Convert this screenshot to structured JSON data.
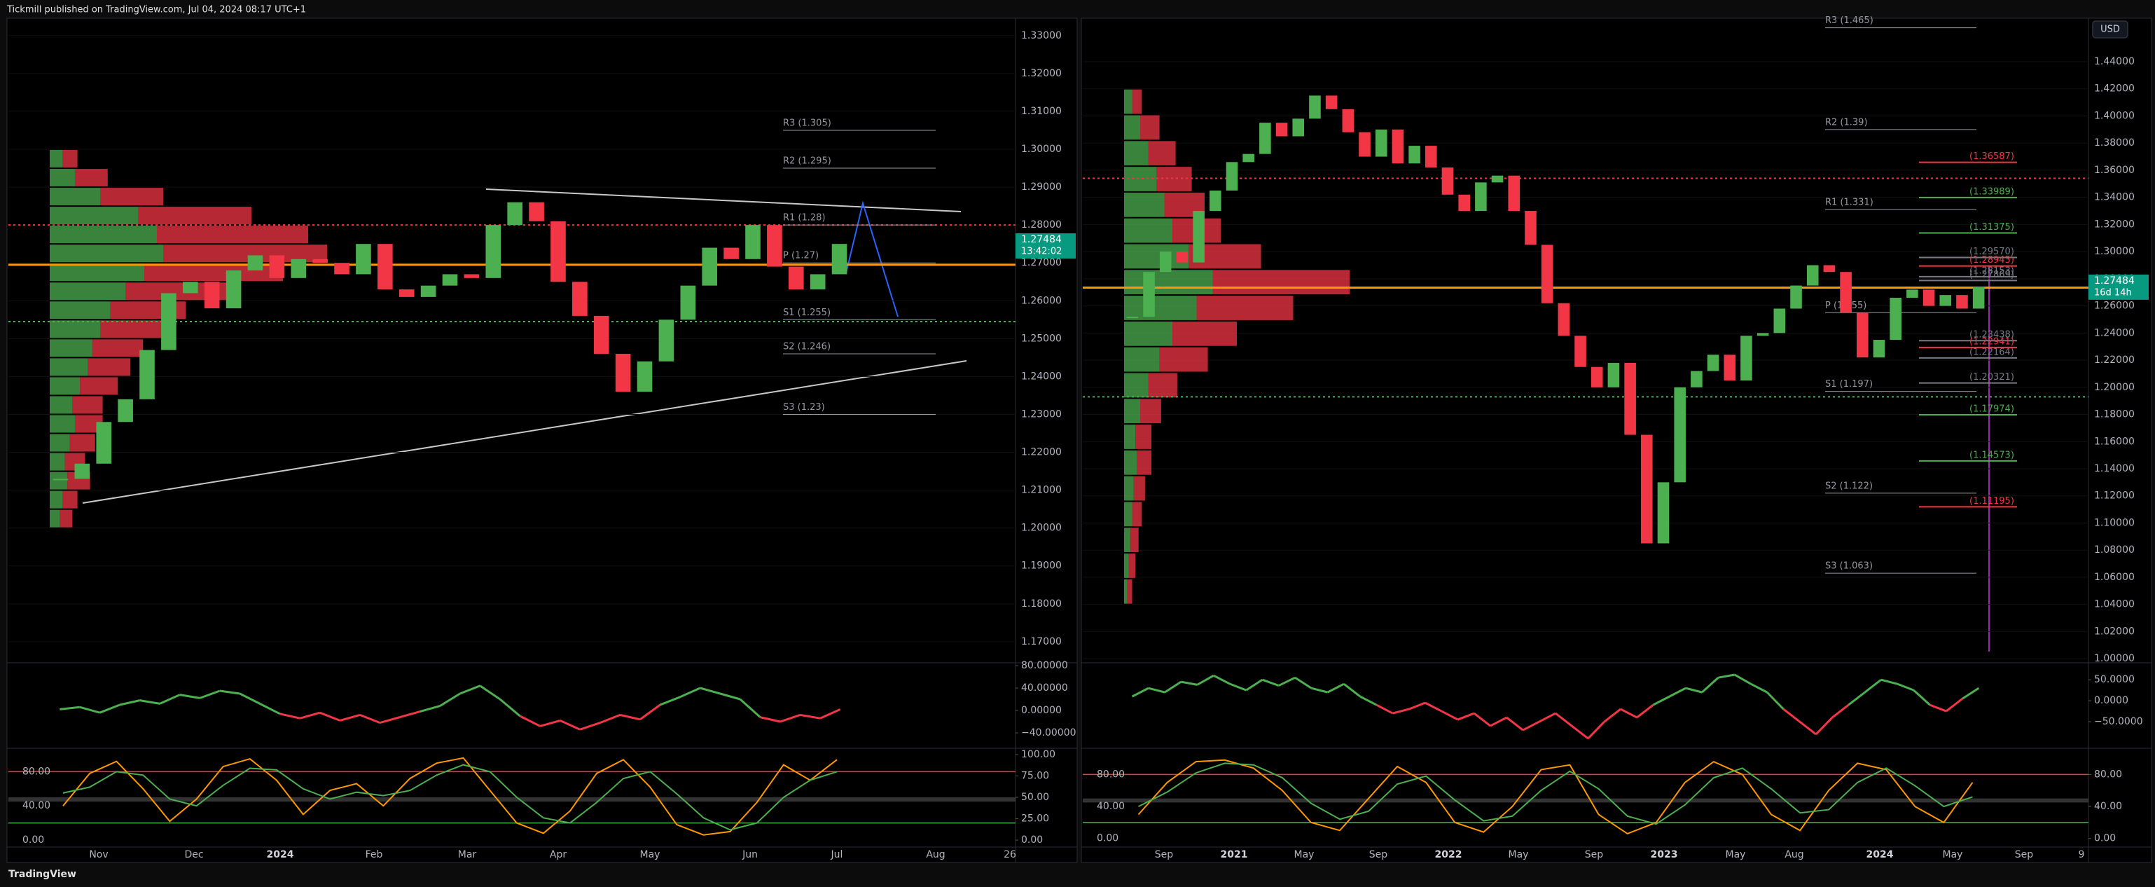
{
  "header": {
    "title": "Tickmill published on TradingView.com, Jul 04, 2024 08:17 UTC+1"
  },
  "footer": {
    "brand": "TradingView"
  },
  "currency": "USD",
  "charts": [
    {
      "type": "candlestick",
      "closes": [
        1.213,
        1.217,
        1.228,
        1.234,
        1.247,
        1.262,
        1.265,
        1.258,
        1.268,
        1.272,
        1.266,
        1.271,
        1.27,
        1.267,
        1.275,
        1.263,
        1.261,
        1.264,
        1.267,
        1.266,
        1.28,
        1.286,
        1.281,
        1.265,
        1.256,
        1.246,
        1.236,
        1.244,
        1.255,
        1.264,
        1.274,
        1.271,
        1.28,
        1.269,
        1.263,
        1.267,
        1.275
      ],
      "ylim": [
        1.1648,
        1.3344
      ],
      "yticks": [
        {
          "value": 1.17,
          "label": "1.17000"
        },
        {
          "value": 1.18,
          "label": "1.18000"
        },
        {
          "value": 1.19,
          "label": "1.19000"
        },
        {
          "value": 1.2,
          "label": "1.20000"
        },
        {
          "value": 1.21,
          "label": "1.21000"
        },
        {
          "value": 1.22,
          "label": "1.22000"
        },
        {
          "value": 1.23,
          "label": "1.23000"
        },
        {
          "value": 1.24,
          "label": "1.24000"
        },
        {
          "value": 1.25,
          "label": "1.25000"
        },
        {
          "value": 1.26,
          "label": "1.26000"
        },
        {
          "value": 1.27,
          "label": "1.27000"
        },
        {
          "value": 1.28,
          "label": "1.28000"
        },
        {
          "value": 1.29,
          "label": "1.29000"
        },
        {
          "value": 1.3,
          "label": "1.30000"
        },
        {
          "value": 1.31,
          "label": "1.31000"
        },
        {
          "value": 1.32,
          "label": "1.32000"
        },
        {
          "value": 1.33,
          "label": "1.33000"
        }
      ],
      "pivots": [
        {
          "label": "R3 (1.305)",
          "value": 1.305
        },
        {
          "label": "R2 (1.295)",
          "value": 1.295
        },
        {
          "label": "R1 (1.28)",
          "value": 1.28
        },
        {
          "label": "P (1.27)",
          "value": 1.27
        },
        {
          "label": "S1 (1.255)",
          "value": 1.255
        },
        {
          "label": "S2 (1.246)",
          "value": 1.246
        },
        {
          "label": "S3 (1.23)",
          "value": 1.23
        }
      ],
      "levels": [
        {
          "value": 1.2695,
          "color": "#ff9800",
          "style": "solid"
        },
        {
          "value": 1.28,
          "color": "#f23645",
          "style": "dotted"
        },
        {
          "value": 1.2545,
          "color": "#4caf50",
          "style": "dotted"
        }
      ],
      "colored_levels": [],
      "last_price": 1.27484,
      "countdown": "13:42:02",
      "time_labels": [
        "Nov",
        "Dec",
        "2024",
        "Feb",
        "Mar",
        "Apr",
        "May",
        "Jun",
        "Jul",
        "Aug",
        "26"
      ],
      "volume_profile": {
        "range": [
          1.2,
          1.3
        ],
        "buy": [
          8,
          10,
          14,
          12,
          16,
          20,
          18,
          24,
          30,
          34,
          40,
          48,
          60,
          75,
          90,
          85,
          70,
          40,
          20,
          10
        ],
        "sell": [
          10,
          12,
          18,
          16,
          20,
          22,
          24,
          30,
          34,
          40,
          50,
          60,
          80,
          110,
          130,
          120,
          90,
          50,
          26,
          12
        ]
      },
      "oscillator": {
        "ylim": [
          -65,
          82.5
        ],
        "yticks": [
          {
            "value": 80,
            "label": "80.00000"
          },
          {
            "value": 40,
            "label": "40.00000"
          },
          {
            "value": 0,
            "label": "0.00000"
          },
          {
            "value": -40,
            "label": "−40.00000"
          }
        ],
        "values": [
          2,
          6,
          -4,
          10,
          18,
          12,
          28,
          22,
          35,
          30,
          12,
          -6,
          -14,
          -4,
          -18,
          -8,
          -22,
          -12,
          -2,
          8,
          30,
          44,
          20,
          -10,
          -28,
          -18,
          -34,
          -22,
          -8,
          -16,
          10,
          24,
          40,
          30,
          20,
          -12,
          -20,
          -8,
          -14,
          2
        ]
      },
      "stochastic": {
        "ylim": [
          -6.5,
          105.7
        ],
        "yticks": [
          {
            "value": 0,
            "label": "0.00"
          },
          {
            "value": 25,
            "label": "25.00"
          },
          {
            "value": 50,
            "label": "50.00"
          },
          {
            "value": 75,
            "label": "75.00"
          },
          {
            "value": 100,
            "label": "100.00"
          }
        ],
        "left_ticks": [
          {
            "value": 0,
            "label": "0.00"
          },
          {
            "value": 40,
            "label": "40.00"
          },
          {
            "value": 80,
            "label": "80.00"
          }
        ],
        "k": [
          40,
          78,
          92,
          60,
          22,
          48,
          86,
          95,
          70,
          30,
          58,
          66,
          40,
          72,
          90,
          96,
          58,
          20,
          8,
          34,
          78,
          94,
          62,
          18,
          6,
          10,
          44,
          88,
          70,
          94
        ],
        "d": [
          55,
          62,
          80,
          76,
          48,
          40,
          64,
          84,
          82,
          60,
          48,
          56,
          52,
          58,
          76,
          88,
          80,
          50,
          26,
          20,
          44,
          72,
          80,
          54,
          26,
          12,
          20,
          50,
          70,
          80
        ],
        "lines": [
          {
            "value": 80,
            "color": "#f23645"
          },
          {
            "value": 20,
            "color": "#4caf50"
          }
        ],
        "band": [
          45,
          50
        ]
      }
    },
    {
      "type": "candlestick",
      "closes": [
        1.252,
        1.285,
        1.3,
        1.292,
        1.33,
        1.345,
        1.366,
        1.372,
        1.395,
        1.385,
        1.398,
        1.415,
        1.405,
        1.388,
        1.37,
        1.39,
        1.365,
        1.378,
        1.362,
        1.342,
        1.33,
        1.351,
        1.356,
        1.33,
        1.305,
        1.262,
        1.238,
        1.215,
        1.2,
        1.218,
        1.165,
        1.085,
        1.13,
        1.2,
        1.212,
        1.224,
        1.205,
        1.238,
        1.24,
        1.258,
        1.275,
        1.29,
        1.285,
        1.255,
        1.222,
        1.235,
        1.266,
        1.272,
        1.26,
        1.268,
        1.258,
        1.274
      ],
      "ylim": [
        0.998,
        1.4715
      ],
      "yticks": [
        {
          "value": 1.0,
          "label": "1.00000"
        },
        {
          "value": 1.02,
          "label": "1.02000"
        },
        {
          "value": 1.04,
          "label": "1.04000"
        },
        {
          "value": 1.06,
          "label": "1.06000"
        },
        {
          "value": 1.08,
          "label": "1.08000"
        },
        {
          "value": 1.1,
          "label": "1.10000"
        },
        {
          "value": 1.12,
          "label": "1.12000"
        },
        {
          "value": 1.14,
          "label": "1.14000"
        },
        {
          "value": 1.16,
          "label": "1.16000"
        },
        {
          "value": 1.18,
          "label": "1.18000"
        },
        {
          "value": 1.2,
          "label": "1.20000"
        },
        {
          "value": 1.22,
          "label": "1.22000"
        },
        {
          "value": 1.24,
          "label": "1.24000"
        },
        {
          "value": 1.26,
          "label": "1.26000"
        },
        {
          "value": 1.28,
          "label": "1.28000"
        },
        {
          "value": 1.3,
          "label": "1.30000"
        },
        {
          "value": 1.32,
          "label": "1.32000"
        },
        {
          "value": 1.34,
          "label": "1.34000"
        },
        {
          "value": 1.36,
          "label": "1.36000"
        },
        {
          "value": 1.38,
          "label": "1.38000"
        },
        {
          "value": 1.4,
          "label": "1.40000"
        },
        {
          "value": 1.42,
          "label": "1.42000"
        },
        {
          "value": 1.44,
          "label": "1.44000"
        }
      ],
      "pivots": [
        {
          "label": "R3 (1.465)",
          "value": 1.465
        },
        {
          "label": "R2 (1.39)",
          "value": 1.39
        },
        {
          "label": "R1 (1.331)",
          "value": 1.331
        },
        {
          "label": "P (1.255)",
          "value": 1.255
        },
        {
          "label": "S1 (1.197)",
          "value": 1.197
        },
        {
          "label": "S2 (1.122)",
          "value": 1.122
        },
        {
          "label": "S3 (1.063)",
          "value": 1.063
        }
      ],
      "levels": [
        {
          "value": 1.2735,
          "color": "#ff9800",
          "style": "solid"
        },
        {
          "value": 1.354,
          "color": "#f23645",
          "style": "dotted"
        },
        {
          "value": 1.193,
          "color": "#4caf50",
          "style": "dotted"
        }
      ],
      "colored_levels": [
        {
          "label": "(1.36587)",
          "value": 1.36587,
          "color": "#f23645"
        },
        {
          "label": "(1.33989)",
          "value": 1.33989,
          "color": "#4caf50"
        },
        {
          "label": "(1.31375)",
          "value": 1.31375,
          "color": "#4caf50"
        },
        {
          "label": "(1.29570)",
          "value": 1.2957,
          "color": "#787b86"
        },
        {
          "label": "(1.28943)",
          "value": 1.28943,
          "color": "#f23645"
        },
        {
          "label": "(1.28153)",
          "value": 1.28153,
          "color": "#787b86"
        },
        {
          "label": "(1.27869)",
          "value": 1.27869,
          "color": "#787b86"
        },
        {
          "label": "(1.23438)",
          "value": 1.23438,
          "color": "#787b86"
        },
        {
          "label": "(1.22941)",
          "value": 1.22941,
          "color": "#f23645"
        },
        {
          "label": "(1.22164)",
          "value": 1.22164,
          "color": "#787b86"
        },
        {
          "label": "(1.20321)",
          "value": 1.20321,
          "color": "#787b86"
        },
        {
          "label": "(1.17974)",
          "value": 1.17974,
          "color": "#4caf50"
        },
        {
          "label": "(1.14573)",
          "value": 1.14573,
          "color": "#4caf50"
        },
        {
          "label": "(1.11195)",
          "value": 1.11195,
          "color": "#f23645"
        }
      ],
      "last_price": 1.27484,
      "countdown": "16d 14h",
      "time_labels": [
        "Sep",
        "2021",
        "May",
        "Sep",
        "2022",
        "May",
        "Sep",
        "2023",
        "May",
        "Aug",
        "2024",
        "May",
        "Sep",
        "9"
      ],
      "volume_profile": {
        "range": [
          1.04,
          1.42
        ],
        "buy": [
          4,
          6,
          8,
          10,
          12,
          16,
          14,
          20,
          30,
          44,
          60,
          90,
          110,
          80,
          60,
          50,
          40,
          30,
          20,
          10
        ],
        "sell": [
          6,
          8,
          10,
          12,
          14,
          18,
          20,
          26,
          36,
          60,
          80,
          120,
          170,
          90,
          60,
          50,
          44,
          34,
          24,
          12
        ]
      },
      "oscillator": {
        "ylim": [
          -110,
          87
        ],
        "yticks": [
          {
            "value": 50,
            "label": "50.0000"
          },
          {
            "value": 0,
            "label": "0.0000"
          },
          {
            "value": -50,
            "label": "−50.0000"
          }
        ],
        "values": [
          10,
          30,
          20,
          45,
          38,
          60,
          40,
          25,
          50,
          36,
          55,
          30,
          20,
          40,
          10,
          -10,
          -30,
          -20,
          -5,
          -25,
          -45,
          -30,
          -60,
          -40,
          -70,
          -50,
          -30,
          -60,
          -90,
          -50,
          -20,
          -40,
          -10,
          10,
          30,
          20,
          55,
          62,
          40,
          20,
          -20,
          -50,
          -80,
          -40,
          -10,
          20,
          50,
          40,
          25,
          -10,
          -25,
          5,
          30
        ]
      },
      "stochastic": {
        "ylim": [
          -9,
          111
        ],
        "yticks": [
          {
            "value": 0,
            "label": "0.00"
          },
          {
            "value": 40,
            "label": "40.00"
          },
          {
            "value": 80,
            "label": "80.00"
          }
        ],
        "left_ticks": [
          {
            "value": 0,
            "label": "0.00"
          },
          {
            "value": 40,
            "label": "40.00"
          },
          {
            "value": 80,
            "label": "80.00"
          }
        ],
        "k": [
          30,
          70,
          96,
          98,
          88,
          60,
          20,
          10,
          50,
          90,
          70,
          20,
          8,
          40,
          86,
          92,
          30,
          6,
          20,
          70,
          96,
          80,
          30,
          10,
          60,
          94,
          86,
          40,
          20,
          70
        ],
        "d": [
          40,
          58,
          82,
          94,
          92,
          76,
          44,
          24,
          34,
          68,
          78,
          48,
          22,
          28,
          60,
          84,
          62,
          28,
          18,
          42,
          76,
          88,
          62,
          32,
          36,
          70,
          88,
          66,
          40,
          52
        ],
        "lines": [
          {
            "value": 80,
            "color": "#f23645"
          },
          {
            "value": 20,
            "color": "#4caf50"
          }
        ],
        "band": [
          45,
          50
        ]
      }
    }
  ]
}
